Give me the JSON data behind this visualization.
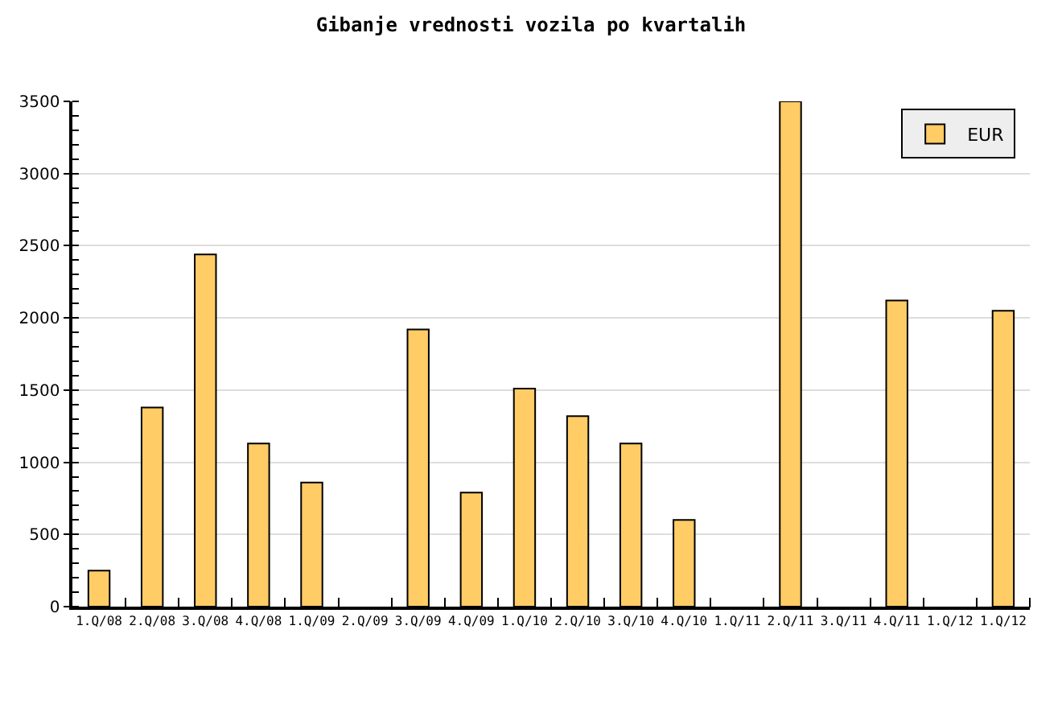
{
  "chart_data": {
    "type": "bar",
    "title": "Gibanje vrednosti vozila po kvartalih",
    "categories": [
      "1.Q/08",
      "2.Q/08",
      "3.Q/08",
      "4.Q/08",
      "1.Q/09",
      "2.Q/09",
      "3.Q/09",
      "4.Q/09",
      "1.Q/10",
      "2.Q/10",
      "3.Q/10",
      "4.Q/10",
      "1.Q/11",
      "2.Q/11",
      "3.Q/11",
      "4.Q/11",
      "1.Q/12",
      "1.Q/12"
    ],
    "series": [
      {
        "name": "EUR",
        "color": "#ffcc66",
        "values": [
          250,
          1380,
          2440,
          1130,
          860,
          null,
          1920,
          790,
          1510,
          1320,
          1130,
          600,
          null,
          3500,
          null,
          2120,
          null,
          2050
        ]
      }
    ],
    "ylim": [
      0,
      3500
    ],
    "yticks": [
      0,
      500,
      1000,
      1500,
      2000,
      2500,
      3000,
      3500
    ],
    "grid": "y",
    "legend": "top right"
  }
}
